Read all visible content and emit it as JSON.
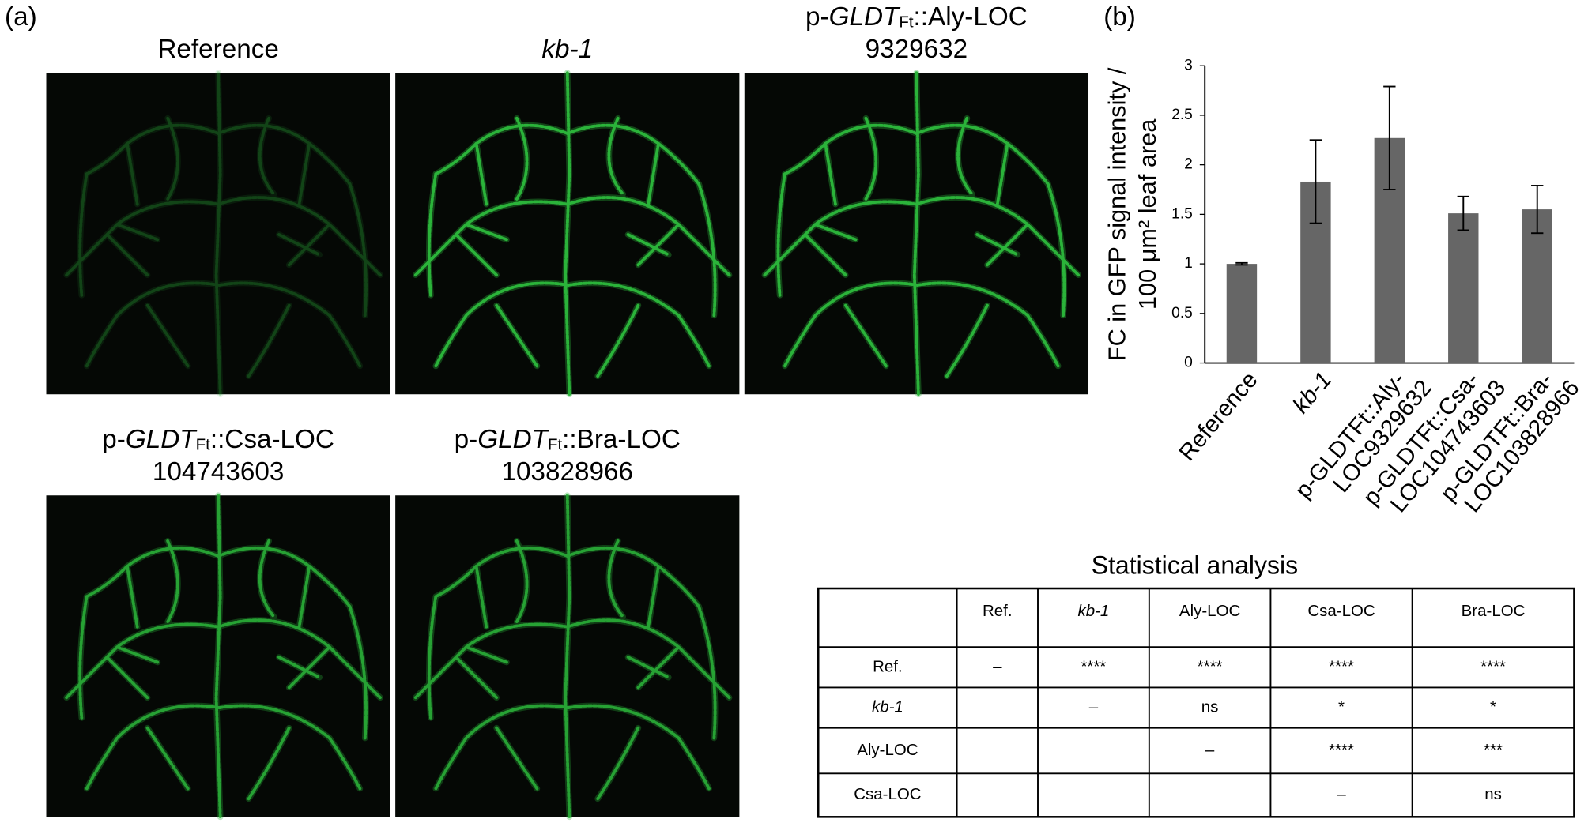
{
  "panel_a": {
    "label": "(a)",
    "images": [
      {
        "title": "Reference"
      },
      {
        "title": "kb-1",
        "italic": true
      },
      {
        "title": {
          "prefix": "p-",
          "gene": "GLDT",
          "sub": "Ft",
          "rest": "::Aly-LOC"
        },
        "title_line2": "9329632"
      },
      {
        "title": {
          "prefix": "p-",
          "gene": "GLDT",
          "sub": "Ft",
          "rest": "::Csa-LOC"
        },
        "title_line2": "104743603"
      },
      {
        "title": {
          "prefix": "p-",
          "gene": "GLDT",
          "sub": "Ft",
          "rest": "::Bra-LOC"
        },
        "title_line2": "103828966"
      }
    ]
  },
  "panel_b": {
    "label": "(b)"
  },
  "chart_data": {
    "type": "bar",
    "y_label": [
      "FC in GFP signal intensity /",
      "100 μm² leaf area"
    ],
    "categories": [
      [
        "Reference"
      ],
      [
        "kb-1"
      ],
      [
        "p-GLDTFt::Aly-",
        "LOC9329632"
      ],
      [
        "p-GLDTFt::Csa-",
        "LOC104743603"
      ],
      [
        "p-GLDTFt::Bra-",
        "LOC103828966"
      ]
    ],
    "values": [
      1.0,
      1.83,
      2.27,
      1.51,
      1.55
    ],
    "errors": [
      0.01,
      0.42,
      0.52,
      0.17,
      0.24
    ],
    "color": "#666666",
    "ylim": [
      0,
      3
    ],
    "yticks": [
      0,
      0.5,
      1,
      1.5,
      2,
      2.5,
      3
    ],
    "grid": false
  },
  "table": {
    "title": "Statistical analysis",
    "header": [
      null,
      "Ref.",
      "kb-1",
      "Aly-LOC",
      "Csa-LOC",
      "Bra-LOC"
    ],
    "rows": [
      [
        "Ref.",
        "–",
        "****",
        "****",
        "****",
        "****"
      ],
      [
        "kb-1",
        null,
        "–",
        "ns",
        "*",
        "*"
      ],
      [
        "Aly-LOC",
        null,
        null,
        "–",
        "****",
        "***"
      ],
      [
        "Csa-LOC",
        null,
        null,
        null,
        "–",
        "ns"
      ]
    ]
  }
}
